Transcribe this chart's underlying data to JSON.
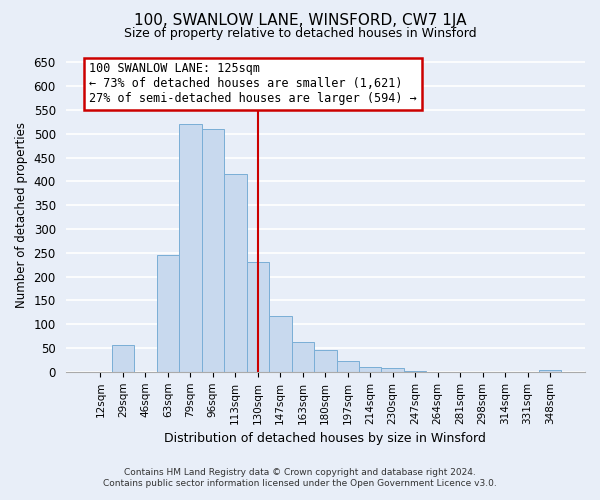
{
  "title": "100, SWANLOW LANE, WINSFORD, CW7 1JA",
  "subtitle": "Size of property relative to detached houses in Winsford",
  "xlabel": "Distribution of detached houses by size in Winsford",
  "ylabel": "Number of detached properties",
  "bar_labels": [
    "12sqm",
    "29sqm",
    "46sqm",
    "63sqm",
    "79sqm",
    "96sqm",
    "113sqm",
    "130sqm",
    "147sqm",
    "163sqm",
    "180sqm",
    "197sqm",
    "214sqm",
    "230sqm",
    "247sqm",
    "264sqm",
    "281sqm",
    "298sqm",
    "314sqm",
    "331sqm",
    "348sqm"
  ],
  "bar_values": [
    0,
    57,
    0,
    245,
    520,
    510,
    415,
    230,
    118,
    62,
    45,
    23,
    10,
    7,
    2,
    0,
    0,
    0,
    0,
    0,
    3
  ],
  "bar_color": "#c8d9ee",
  "bar_edge_color": "#7aaed6",
  "vline_color": "#cc0000",
  "annotation_line1": "100 SWANLOW LANE: 125sqm",
  "annotation_line2": "← 73% of detached houses are smaller (1,621)",
  "annotation_line3": "27% of semi-detached houses are larger (594) →",
  "annotation_box_color": "#ffffff",
  "annotation_box_edge": "#cc0000",
  "ylim": [
    0,
    660
  ],
  "yticks": [
    0,
    50,
    100,
    150,
    200,
    250,
    300,
    350,
    400,
    450,
    500,
    550,
    600,
    650
  ],
  "footer_line1": "Contains HM Land Registry data © Crown copyright and database right 2024.",
  "footer_line2": "Contains public sector information licensed under the Open Government Licence v3.0.",
  "bg_color": "#e8eef8",
  "plot_bg_color": "#e8eef8"
}
